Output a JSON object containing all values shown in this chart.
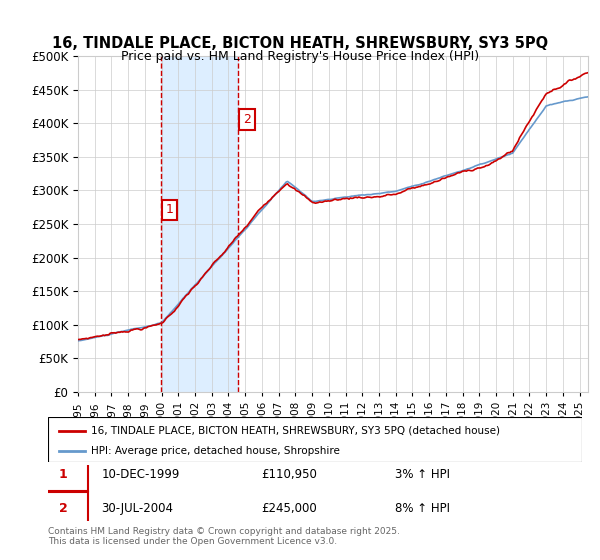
{
  "title_line1": "16, TINDALE PLACE, BICTON HEATH, SHREWSBURY, SY3 5PQ",
  "title_line2": "Price paid vs. HM Land Registry's House Price Index (HPI)",
  "ylim": [
    0,
    500000
  ],
  "yticks": [
    0,
    50000,
    100000,
    150000,
    200000,
    250000,
    300000,
    350000,
    400000,
    450000,
    500000
  ],
  "xlim_start": 1995.0,
  "xlim_end": 2025.5,
  "purchase1_date": 1999.95,
  "purchase2_date": 2004.58,
  "purchase1_price": 110950,
  "purchase2_price": 245000,
  "legend_entry1": "16, TINDALE PLACE, BICTON HEATH, SHREWSBURY, SY3 5PQ (detached house)",
  "legend_entry2": "HPI: Average price, detached house, Shropshire",
  "table_rows": [
    {
      "num": "1",
      "date": "10-DEC-1999",
      "price": "£110,950",
      "hpi": "3% ↑ HPI"
    },
    {
      "num": "2",
      "date": "30-JUL-2004",
      "price": "£245,000",
      "hpi": "8% ↑ HPI"
    }
  ],
  "copyright_text": "Contains HM Land Registry data © Crown copyright and database right 2025.\nThis data is licensed under the Open Government Licence v3.0.",
  "line_color_property": "#cc0000",
  "line_color_hpi": "#6699cc",
  "shading_color": "#ddeeff",
  "marker_box_color": "#cc0000",
  "grid_color": "#cccccc",
  "background_color": "#ffffff"
}
